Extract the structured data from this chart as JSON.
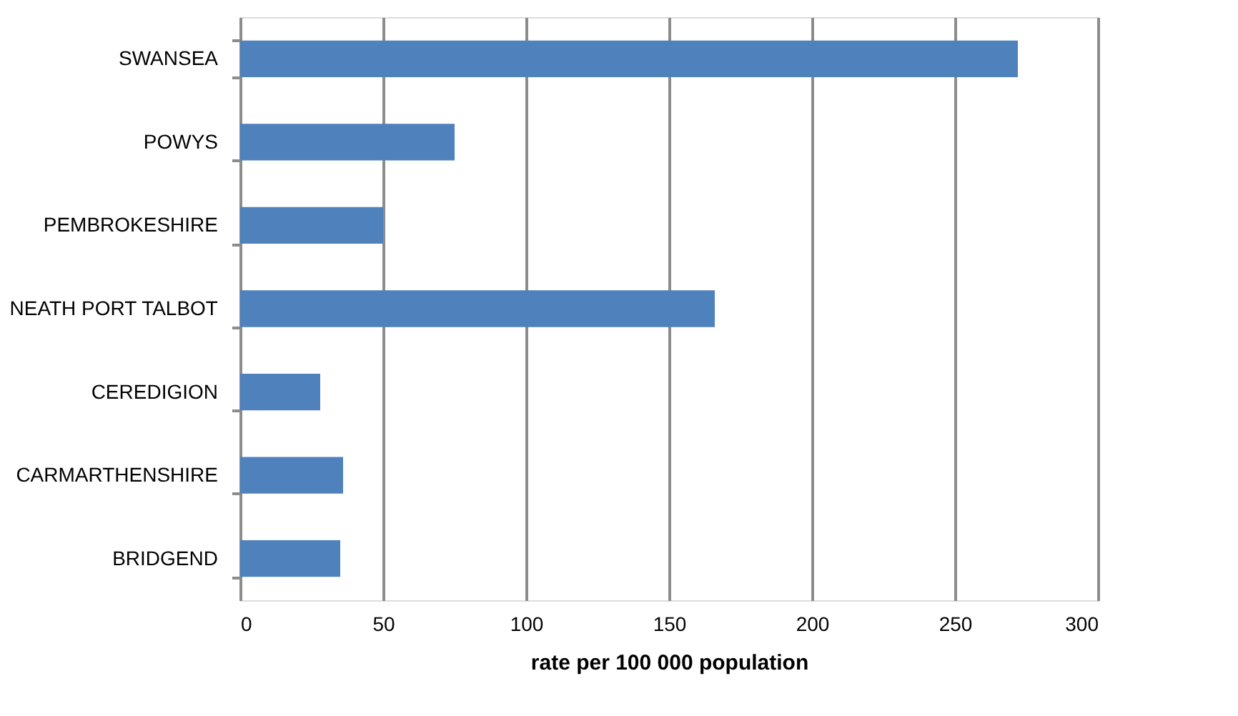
{
  "chart_data": {
    "type": "bar",
    "orientation": "horizontal",
    "xlabel": "rate per 100 000 population",
    "categories": [
      "SWANSEA",
      "POWYS",
      "PEMBROKESHIRE",
      "NEATH PORT TALBOT",
      "CEREDIGION",
      "CARMARTHENSHIRE",
      "BRIDGEND"
    ],
    "values": [
      272,
      75,
      50,
      166,
      28,
      36,
      35
    ],
    "color": "#4f81bd",
    "xlim": [
      0,
      300
    ],
    "xticks": [
      0,
      50,
      100,
      150,
      200,
      250,
      300
    ],
    "grid": "x"
  }
}
